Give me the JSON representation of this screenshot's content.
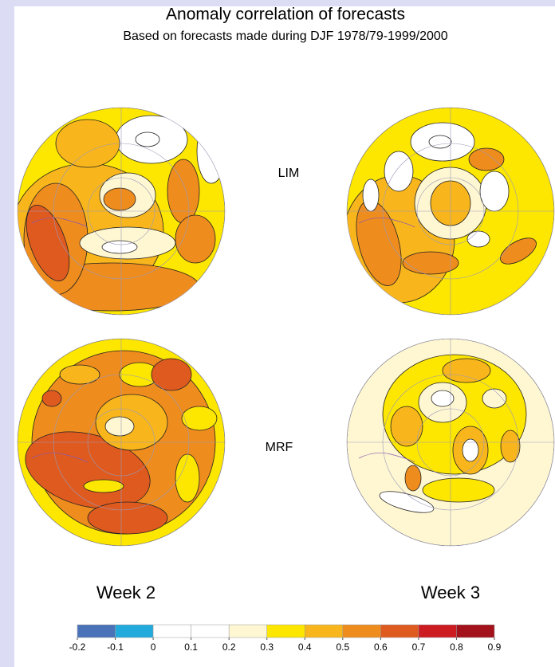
{
  "header": {
    "title": "Anomaly correlation of forecasts",
    "subtitle": "Based on forecasts made during DJF 1978/79-1999/2000"
  },
  "rows": [
    "LIM",
    "MRF"
  ],
  "columns": [
    "Week 2",
    "Week 3"
  ],
  "colorbar": {
    "ticks": [
      -0.2,
      -0.1,
      0,
      0.1,
      0.2,
      0.3,
      0.4,
      0.5,
      0.6,
      0.7,
      0.8,
      0.9
    ],
    "colors": [
      "#4a72b8",
      "#22aadd",
      "#ffffff",
      "#ffffff",
      "#fff7d2",
      "#fde600",
      "#f8b61c",
      "#ee8c1e",
      "#df5a1f",
      "#cc1c22",
      "#a3111a"
    ]
  }
}
